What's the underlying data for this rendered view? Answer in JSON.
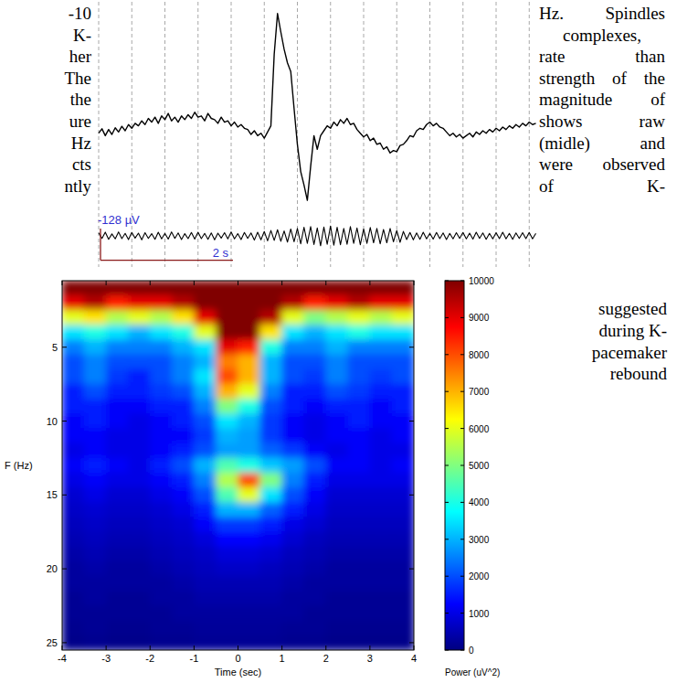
{
  "page_text": {
    "left_column": [
      "-10",
      "K-",
      "her",
      "The",
      "the",
      "ure",
      "Hz",
      "cts",
      "ntly"
    ],
    "right_column": [
      "Hz. Spindles",
      "complexes,",
      "rate than",
      "strength of the",
      "magnitude of",
      "shows raw",
      "(midle) and",
      "were observed",
      "of K-"
    ],
    "right_column_lower": [
      "suggested",
      "during K-",
      "pacemaker",
      "rebound"
    ]
  },
  "eeg_figure": {
    "start_s": 0,
    "sample_interval_s": 0.05,
    "grid_times": [
      0,
      0.5,
      1,
      1.5,
      2,
      2.5,
      3,
      3.5,
      4,
      4.5,
      5,
      5.5,
      6,
      6.5
    ],
    "raw": [
      -10,
      8,
      -20,
      5,
      -15,
      12,
      -5,
      18,
      0,
      25,
      10,
      30,
      20,
      40,
      25,
      50,
      35,
      55,
      30,
      60,
      45,
      70,
      40,
      55,
      35,
      60,
      45,
      65,
      50,
      75,
      55,
      60,
      40,
      70,
      50,
      45,
      30,
      55,
      35,
      40,
      20,
      35,
      15,
      25,
      10,
      5,
      -15,
      0,
      -20,
      -10,
      -30,
      -5,
      20,
      310,
      475,
      400,
      330,
      275,
      240,
      90,
      -55,
      -165,
      -220,
      -282,
      -145,
      -20,
      -75,
      -20,
      0,
      20,
      10,
      35,
      20,
      45,
      30,
      50,
      25,
      30,
      5,
      -10,
      -25,
      -15,
      -40,
      -30,
      -55,
      -50,
      -75,
      -65,
      -90,
      -80,
      -85,
      -60,
      -55,
      -40,
      -20,
      -25,
      0,
      10,
      5,
      25,
      35,
      20,
      30,
      15,
      10,
      -5,
      -20,
      -10,
      -25,
      -15,
      -30,
      -20,
      -10,
      -25,
      -5,
      -15,
      0,
      -10,
      5,
      -5,
      10,
      0,
      15,
      5,
      20,
      10,
      25,
      15,
      30,
      20,
      35,
      25,
      30
    ],
    "filtered": [
      12,
      -10,
      15,
      -14,
      8,
      -12,
      16,
      -11,
      10,
      -15,
      14,
      -9,
      11,
      -16,
      13,
      -10,
      9,
      -14,
      15,
      -12,
      10,
      -13,
      16,
      -10,
      12,
      -15,
      9,
      -11,
      14,
      -13,
      15,
      -11,
      10,
      -14,
      12,
      -16,
      11,
      -9,
      13,
      -12,
      16,
      -12,
      9,
      -15,
      14,
      -10,
      12,
      -17,
      15,
      -16,
      18,
      -20,
      22,
      -18,
      25,
      -22,
      20,
      -25,
      28,
      -24,
      30,
      -32,
      35,
      -30,
      38,
      -35,
      32,
      -40,
      36,
      -34,
      40,
      -38,
      35,
      -36,
      30,
      -34,
      38,
      -30,
      32,
      -36,
      28,
      -30,
      34,
      -28,
      30,
      -32,
      26,
      -28,
      30,
      -24,
      22,
      -26,
      18,
      -15,
      14,
      -16,
      12,
      -14,
      15,
      -12,
      10,
      -13,
      14,
      -11,
      12,
      -15,
      10,
      -12,
      13,
      -10,
      14,
      -12,
      11,
      -13,
      15,
      -10,
      12,
      -14,
      10,
      -12,
      13,
      -11,
      15,
      -12,
      10,
      -14,
      12,
      -10,
      13,
      -11,
      14,
      -12,
      10
    ],
    "scale_bar": {
      "amplitude": -128,
      "amplitude_label": "-128 µV",
      "duration": 2,
      "duration_label": "2 s"
    }
  },
  "chart_data": {
    "type": "heatmap",
    "xlabel": "Time (sec)",
    "ylabel": "F (Hz)",
    "x": [
      -3.75,
      -3.25,
      -2.75,
      -2.25,
      -1.75,
      -1.25,
      -0.75,
      -0.25,
      0.25,
      0.75,
      1.25,
      1.75,
      2.25,
      2.75,
      3.25,
      3.75
    ],
    "y": [
      1,
      2,
      3,
      4,
      5,
      6,
      7,
      8,
      9,
      10,
      11,
      12,
      13,
      14,
      15,
      16,
      17,
      18,
      19,
      20,
      21,
      22,
      23,
      24,
      25
    ],
    "cells": [
      [
        12000,
        12000,
        12000,
        12000,
        12000,
        12000,
        13000,
        15000,
        15000,
        13000,
        12000,
        12000,
        12000,
        12000,
        12000,
        12000
      ],
      [
        9000,
        9500,
        8500,
        9000,
        9000,
        9500,
        11000,
        14000,
        14000,
        11000,
        9500,
        8500,
        9000,
        9500,
        9000,
        9000
      ],
      [
        6000,
        6500,
        5500,
        6000,
        5500,
        6500,
        9000,
        13000,
        13000,
        9500,
        6000,
        5000,
        5500,
        6000,
        5500,
        6000
      ],
      [
        3500,
        4000,
        3500,
        3000,
        3500,
        4000,
        6000,
        12000,
        12000,
        6500,
        3500,
        3000,
        3500,
        4000,
        3500,
        3500
      ],
      [
        2500,
        3000,
        2500,
        2500,
        2500,
        3000,
        3500,
        9000,
        8500,
        4000,
        2500,
        2500,
        3000,
        2500,
        2500,
        2500
      ],
      [
        2000,
        2500,
        2000,
        2000,
        2000,
        2500,
        3000,
        7500,
        7000,
        3000,
        2000,
        2000,
        2500,
        2000,
        2000,
        2000
      ],
      [
        2000,
        2500,
        1800,
        1500,
        2000,
        2500,
        3500,
        8000,
        7000,
        3000,
        2000,
        1800,
        2500,
        2000,
        1800,
        2000
      ],
      [
        1500,
        2000,
        1500,
        1500,
        1800,
        2000,
        3000,
        7000,
        6000,
        2500,
        1500,
        1500,
        2000,
        1800,
        1500,
        1500
      ],
      [
        1500,
        1500,
        1200,
        1200,
        1500,
        1500,
        2500,
        5000,
        4000,
        2000,
        1500,
        1200,
        1500,
        1500,
        1200,
        1500
      ],
      [
        1200,
        1500,
        1200,
        1000,
        1200,
        1500,
        2000,
        3500,
        3000,
        1800,
        1200,
        1000,
        1200,
        1500,
        1200,
        1200
      ],
      [
        1200,
        1200,
        1000,
        1000,
        1200,
        1200,
        1800,
        3000,
        2800,
        1800,
        1200,
        1000,
        1200,
        1200,
        1000,
        1200
      ],
      [
        1000,
        1200,
        1000,
        1000,
        1200,
        1500,
        2000,
        2800,
        2800,
        2200,
        1800,
        1200,
        1000,
        1200,
        1000,
        1000
      ],
      [
        1200,
        1500,
        1200,
        1000,
        1500,
        2000,
        3000,
        4500,
        4000,
        3200,
        2800,
        2000,
        1200,
        1200,
        1000,
        1200
      ],
      [
        1000,
        1200,
        1000,
        1000,
        1200,
        1500,
        2500,
        5500,
        8000,
        5000,
        2500,
        1500,
        1000,
        1000,
        1000,
        1000
      ],
      [
        800,
        1000,
        800,
        800,
        1000,
        1200,
        2000,
        4500,
        6000,
        3500,
        2000,
        1200,
        800,
        800,
        800,
        800
      ],
      [
        700,
        800,
        700,
        700,
        800,
        1000,
        1500,
        3000,
        3000,
        2200,
        1500,
        1000,
        700,
        700,
        700,
        700
      ],
      [
        600,
        700,
        600,
        600,
        700,
        800,
        1200,
        1800,
        1800,
        1500,
        1000,
        800,
        600,
        600,
        600,
        600
      ],
      [
        500,
        600,
        500,
        500,
        600,
        700,
        900,
        1300,
        1300,
        1100,
        800,
        600,
        500,
        500,
        500,
        500
      ],
      [
        400,
        500,
        400,
        400,
        500,
        600,
        700,
        900,
        900,
        800,
        600,
        500,
        400,
        400,
        400,
        400
      ],
      [
        300,
        400,
        300,
        300,
        400,
        500,
        600,
        700,
        700,
        600,
        500,
        400,
        300,
        300,
        300,
        300
      ],
      [
        300,
        300,
        300,
        300,
        300,
        400,
        500,
        500,
        500,
        500,
        400,
        300,
        300,
        300,
        300,
        300
      ],
      [
        200,
        300,
        200,
        200,
        300,
        300,
        400,
        400,
        400,
        400,
        300,
        300,
        200,
        200,
        200,
        200
      ],
      [
        200,
        200,
        200,
        200,
        200,
        300,
        300,
        300,
        300,
        300,
        300,
        200,
        200,
        200,
        200,
        200
      ],
      [
        150,
        200,
        150,
        150,
        200,
        200,
        250,
        250,
        250,
        250,
        200,
        200,
        150,
        150,
        150,
        150
      ],
      [
        100,
        150,
        100,
        100,
        150,
        150,
        200,
        200,
        200,
        200,
        150,
        150,
        100,
        100,
        100,
        100
      ]
    ],
    "xlim": [
      -4,
      4
    ],
    "ylim": [
      0.5,
      25.5
    ],
    "xticks": [
      -4,
      -3,
      -2,
      -1,
      0,
      1,
      2,
      3,
      4
    ],
    "yticks": [
      5,
      10,
      15,
      20,
      25
    ],
    "colorbar": {
      "range": [
        0,
        10000
      ],
      "ticks": [
        0,
        1000,
        2000,
        3000,
        4000,
        5000,
        6000,
        7000,
        8000,
        9000,
        10000
      ],
      "label": "Power (uV^2)"
    }
  }
}
